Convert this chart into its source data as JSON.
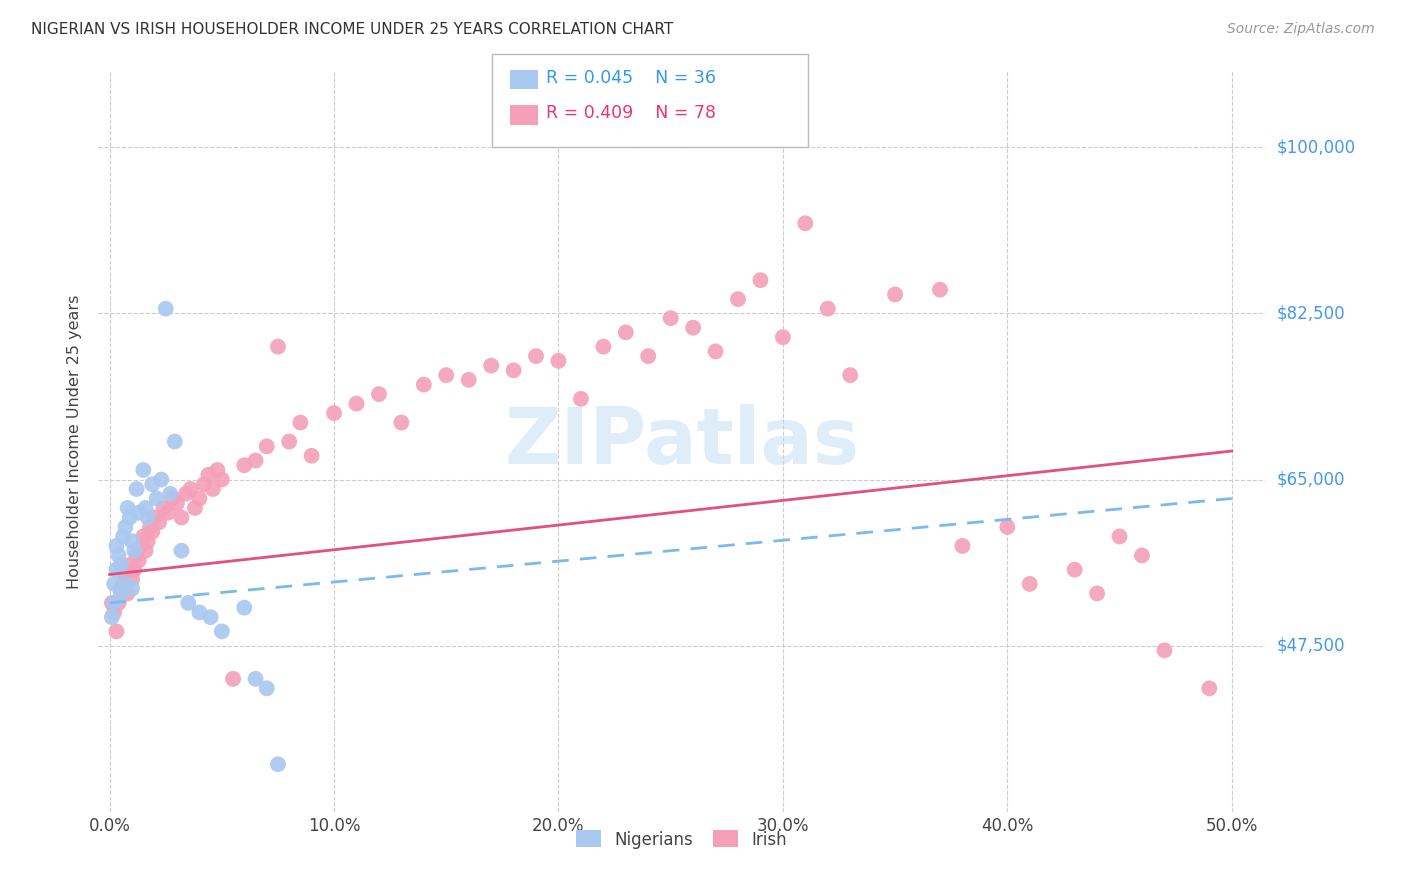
{
  "title": "NIGERIAN VS IRISH HOUSEHOLDER INCOME UNDER 25 YEARS CORRELATION CHART",
  "source": "Source: ZipAtlas.com",
  "xlabel_ticks": [
    "0.0%",
    "10.0%",
    "20.0%",
    "30.0%",
    "40.0%",
    "50.0%"
  ],
  "xlabel_tick_vals": [
    0.0,
    0.1,
    0.2,
    0.3,
    0.4,
    0.5
  ],
  "ylabel_ticks": [
    "$47,500",
    "$65,000",
    "$82,500",
    "$100,000"
  ],
  "ylabel_tick_vals": [
    47500,
    65000,
    82500,
    100000
  ],
  "xlim": [
    -0.005,
    0.515
  ],
  "ylim": [
    30000,
    108000
  ],
  "nigerian_color": "#A8C8F0",
  "irish_color": "#F4A0B8",
  "nigerian_R": 0.045,
  "nigerian_N": 36,
  "irish_R": 0.409,
  "irish_N": 78,
  "watermark": "ZIPatlas",
  "nig_line_color": "#7ABAEE",
  "iri_line_color": "#E05080",
  "nigerian_x": [
    0.001,
    0.002,
    0.002,
    0.003,
    0.003,
    0.004,
    0.005,
    0.005,
    0.006,
    0.007,
    0.007,
    0.008,
    0.009,
    0.01,
    0.01,
    0.011,
    0.012,
    0.013,
    0.015,
    0.016,
    0.017,
    0.019,
    0.021,
    0.023,
    0.025,
    0.027,
    0.029,
    0.032,
    0.035,
    0.04,
    0.045,
    0.05,
    0.06,
    0.065,
    0.07,
    0.075
  ],
  "nigerian_y": [
    50500,
    52000,
    54000,
    55500,
    58000,
    57000,
    56000,
    53000,
    59000,
    60000,
    54000,
    62000,
    61000,
    53500,
    58500,
    57500,
    64000,
    61500,
    66000,
    62000,
    61000,
    64500,
    63000,
    65000,
    83000,
    63500,
    69000,
    57500,
    52000,
    51000,
    50500,
    49000,
    51500,
    44000,
    43000,
    35000
  ],
  "irish_x": [
    0.001,
    0.002,
    0.003,
    0.004,
    0.005,
    0.006,
    0.007,
    0.008,
    0.009,
    0.01,
    0.011,
    0.012,
    0.013,
    0.014,
    0.015,
    0.016,
    0.017,
    0.018,
    0.019,
    0.02,
    0.022,
    0.024,
    0.026,
    0.028,
    0.03,
    0.032,
    0.034,
    0.036,
    0.038,
    0.04,
    0.042,
    0.044,
    0.046,
    0.048,
    0.05,
    0.055,
    0.06,
    0.065,
    0.07,
    0.075,
    0.08,
    0.085,
    0.09,
    0.1,
    0.11,
    0.12,
    0.13,
    0.14,
    0.15,
    0.16,
    0.17,
    0.18,
    0.19,
    0.2,
    0.21,
    0.22,
    0.23,
    0.24,
    0.25,
    0.26,
    0.27,
    0.28,
    0.29,
    0.3,
    0.31,
    0.32,
    0.33,
    0.35,
    0.37,
    0.38,
    0.4,
    0.41,
    0.43,
    0.44,
    0.45,
    0.46,
    0.47,
    0.49
  ],
  "irish_y": [
    52000,
    51000,
    49000,
    52000,
    53500,
    54000,
    55000,
    53000,
    56000,
    54500,
    55500,
    57000,
    56500,
    58000,
    59000,
    57500,
    58500,
    60000,
    59500,
    61000,
    60500,
    62000,
    61500,
    63000,
    62500,
    61000,
    63500,
    64000,
    62000,
    63000,
    64500,
    65500,
    64000,
    66000,
    65000,
    44000,
    66500,
    67000,
    68500,
    79000,
    69000,
    71000,
    67500,
    72000,
    73000,
    74000,
    71000,
    75000,
    76000,
    75500,
    77000,
    76500,
    78000,
    77500,
    73500,
    79000,
    80500,
    78000,
    82000,
    81000,
    78500,
    84000,
    86000,
    80000,
    92000,
    83000,
    76000,
    84500,
    85000,
    58000,
    60000,
    54000,
    55500,
    53000,
    59000,
    57000,
    47000,
    43000
  ]
}
